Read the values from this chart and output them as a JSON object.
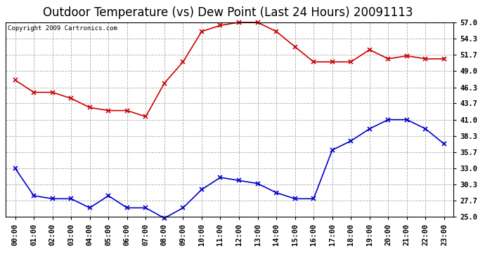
{
  "title": "Outdoor Temperature (vs) Dew Point (Last 24 Hours) 20091113",
  "copyright": "Copyright 2009 Cartronics.com",
  "hours": [
    "00:00",
    "01:00",
    "02:00",
    "03:00",
    "04:00",
    "05:00",
    "06:00",
    "07:00",
    "08:00",
    "09:00",
    "10:00",
    "11:00",
    "12:00",
    "13:00",
    "14:00",
    "15:00",
    "16:00",
    "17:00",
    "18:00",
    "19:00",
    "20:00",
    "21:00",
    "22:00",
    "23:00"
  ],
  "temp": [
    47.5,
    45.5,
    45.5,
    44.5,
    43.0,
    42.5,
    42.5,
    41.5,
    47.0,
    50.5,
    55.5,
    56.5,
    57.0,
    57.0,
    55.5,
    53.0,
    50.5,
    50.5,
    50.5,
    52.5,
    51.0,
    51.5,
    51.0,
    51.0
  ],
  "dew": [
    33.0,
    28.5,
    28.0,
    28.0,
    26.5,
    28.5,
    26.5,
    26.5,
    24.8,
    26.5,
    29.5,
    31.5,
    31.0,
    30.5,
    29.0,
    28.0,
    28.0,
    36.0,
    37.5,
    39.5,
    41.0,
    41.0,
    39.5,
    37.0
  ],
  "temp_color": "#cc0000",
  "dew_color": "#0000cc",
  "bg_color": "#ffffff",
  "grid_color": "#aaaaaa",
  "ymin": 25.0,
  "ymax": 57.0,
  "yticks": [
    25.0,
    27.7,
    30.3,
    33.0,
    35.7,
    38.3,
    41.0,
    43.7,
    46.3,
    49.0,
    51.7,
    54.3,
    57.0
  ],
  "title_fontsize": 12,
  "copyright_fontsize": 6.5,
  "tick_fontsize": 7.5
}
